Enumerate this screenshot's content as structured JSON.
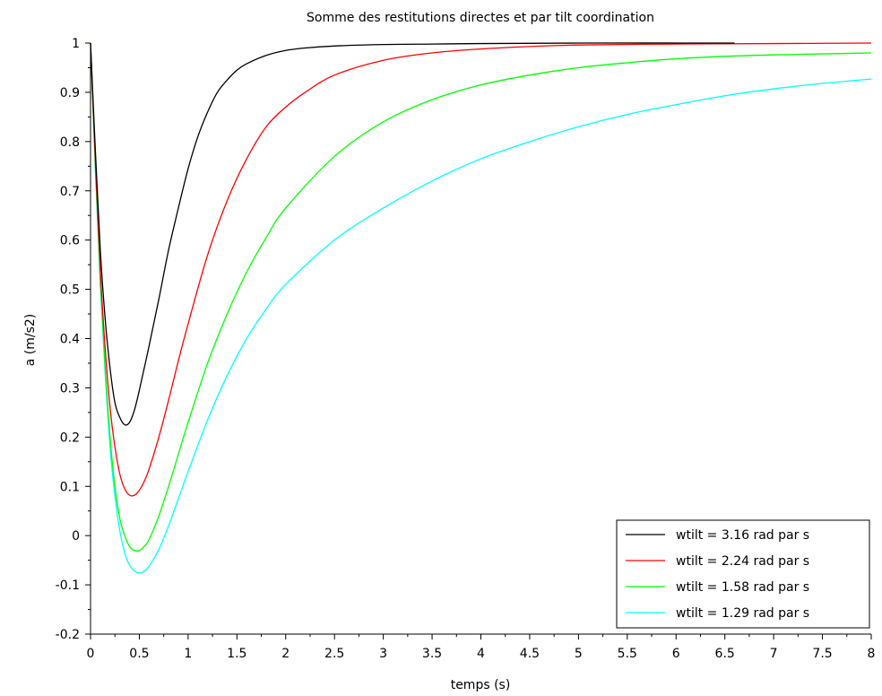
{
  "chart_data": {
    "type": "line",
    "title": "Somme des restitutions directes et par tilt coordination",
    "xlabel": "temps (s)",
    "ylabel": "a (m/s2)",
    "xlim": [
      0,
      8
    ],
    "ylim": [
      -0.2,
      1
    ],
    "x_ticks": [
      "0",
      "0.5",
      "1",
      "1.5",
      "2",
      "2.5",
      "3",
      "3.5",
      "4",
      "4.5",
      "5",
      "5.5",
      "6",
      "6.5",
      "7",
      "7.5",
      "8"
    ],
    "y_ticks": [
      "-0.2",
      "-0.1",
      "0",
      "0.1",
      "0.2",
      "0.3",
      "0.4",
      "0.5",
      "0.6",
      "0.7",
      "0.8",
      "0.9",
      "1"
    ],
    "grid": false,
    "legend_position": "bottom-right",
    "series": [
      {
        "name": "wtilt = 3.16 rad par s",
        "color": "#000000",
        "x": [
          0,
          0.05,
          0.1,
          0.15,
          0.2,
          0.25,
          0.3,
          0.35,
          0.4,
          0.45,
          0.5,
          0.6,
          0.7,
          0.8,
          0.9,
          1.0,
          1.1,
          1.2,
          1.3,
          1.4,
          1.5,
          1.6,
          1.8,
          2.0,
          2.2,
          2.5,
          3.0,
          3.5,
          4.0,
          5.0,
          6.6
        ],
        "y": [
          1.0,
          0.78,
          0.58,
          0.44,
          0.34,
          0.27,
          0.24,
          0.225,
          0.23,
          0.255,
          0.295,
          0.385,
          0.48,
          0.58,
          0.665,
          0.745,
          0.81,
          0.86,
          0.9,
          0.925,
          0.945,
          0.958,
          0.975,
          0.985,
          0.99,
          0.994,
          0.997,
          0.998,
          0.999,
          1.0,
          1.0
        ]
      },
      {
        "name": "wtilt = 2.24 rad par s",
        "color": "#ff0000",
        "x": [
          0,
          0.05,
          0.1,
          0.15,
          0.2,
          0.25,
          0.3,
          0.35,
          0.4,
          0.45,
          0.5,
          0.55,
          0.6,
          0.7,
          0.8,
          0.9,
          1.0,
          1.2,
          1.4,
          1.6,
          1.8,
          2.0,
          2.2,
          2.5,
          3.0,
          3.5,
          4.0,
          4.5,
          5.0,
          6.0,
          7.0,
          8.0
        ],
        "y": [
          1.0,
          0.76,
          0.54,
          0.38,
          0.26,
          0.18,
          0.125,
          0.095,
          0.082,
          0.082,
          0.092,
          0.11,
          0.135,
          0.2,
          0.275,
          0.355,
          0.43,
          0.57,
          0.68,
          0.765,
          0.83,
          0.87,
          0.9,
          0.935,
          0.965,
          0.98,
          0.988,
          0.993,
          0.996,
          0.998,
          0.999,
          1.0
        ]
      },
      {
        "name": "wtilt = 1.58 rad par s",
        "color": "#00ff00",
        "x": [
          0,
          0.05,
          0.1,
          0.15,
          0.2,
          0.25,
          0.3,
          0.35,
          0.4,
          0.45,
          0.5,
          0.55,
          0.6,
          0.7,
          0.8,
          0.9,
          1.0,
          1.2,
          1.4,
          1.6,
          1.8,
          2.0,
          2.5,
          3.0,
          3.5,
          4.0,
          4.5,
          5.0,
          5.5,
          6.0,
          6.5,
          7.0,
          7.5,
          8.0
        ],
        "y": [
          1.0,
          0.75,
          0.52,
          0.34,
          0.2,
          0.1,
          0.035,
          0.0,
          -0.022,
          -0.03,
          -0.03,
          -0.022,
          -0.008,
          0.04,
          0.1,
          0.165,
          0.23,
          0.35,
          0.45,
          0.535,
          0.605,
          0.665,
          0.77,
          0.84,
          0.885,
          0.915,
          0.935,
          0.95,
          0.96,
          0.968,
          0.973,
          0.976,
          0.978,
          0.98
        ]
      },
      {
        "name": "wtilt = 1.29 rad par s",
        "color": "#00ffff",
        "x": [
          0,
          0.05,
          0.1,
          0.15,
          0.2,
          0.25,
          0.3,
          0.35,
          0.4,
          0.45,
          0.5,
          0.55,
          0.6,
          0.7,
          0.8,
          0.9,
          1.0,
          1.2,
          1.4,
          1.6,
          1.8,
          2.0,
          2.5,
          3.0,
          3.5,
          4.0,
          4.5,
          5.0,
          5.5,
          6.0,
          6.5,
          7.0,
          7.5,
          8.0
        ],
        "y": [
          1.0,
          0.74,
          0.51,
          0.33,
          0.18,
          0.08,
          0.01,
          -0.035,
          -0.06,
          -0.072,
          -0.076,
          -0.072,
          -0.062,
          -0.028,
          0.02,
          0.075,
          0.13,
          0.235,
          0.325,
          0.4,
          0.46,
          0.51,
          0.6,
          0.665,
          0.72,
          0.765,
          0.8,
          0.83,
          0.855,
          0.875,
          0.893,
          0.907,
          0.918,
          0.927
        ]
      }
    ]
  }
}
